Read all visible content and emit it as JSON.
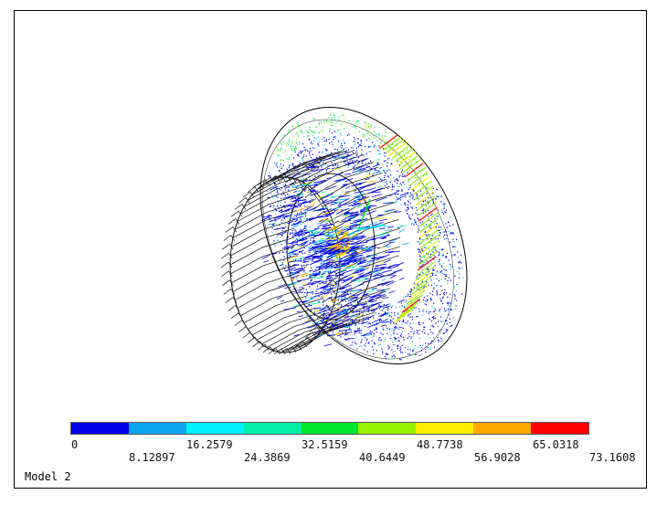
{
  "viewport": {
    "model_label": "Model 2"
  },
  "legend": {
    "colors": [
      "#0000e6",
      "#0aa6f0",
      "#00f0ff",
      "#00f0a8",
      "#00e62e",
      "#98f200",
      "#fff000",
      "#ffa800",
      "#ff0000"
    ],
    "labels_top": [
      "0",
      "16.2579",
      "32.5159",
      "48.7738",
      "65.0318"
    ],
    "labels_bottom": [
      "8.12897",
      "24.3869",
      "40.6449",
      "56.9028",
      "73.1608"
    ]
  }
}
